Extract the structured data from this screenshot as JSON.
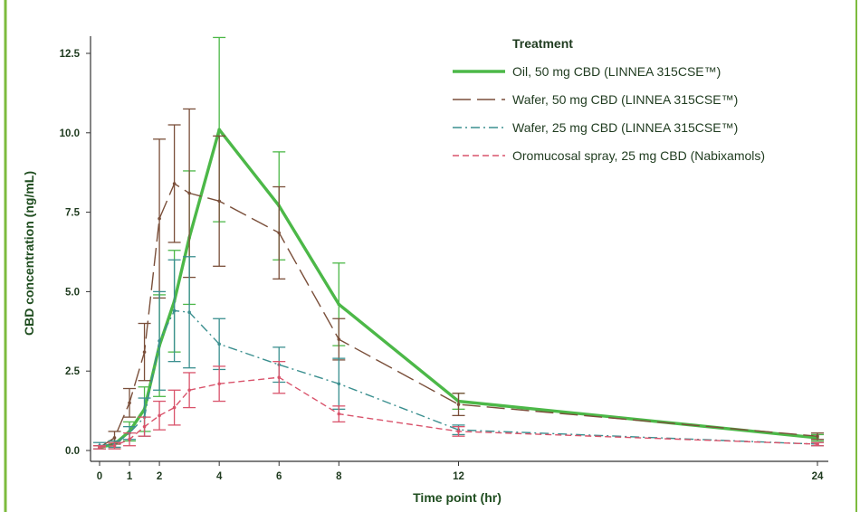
{
  "chart_data": {
    "type": "line",
    "title": "",
    "xlabel": "Time point (hr)",
    "ylabel": "CBD concentration (ng/mL)",
    "xlim": [
      0,
      24
    ],
    "ylim": [
      0,
      12.5
    ],
    "xticks": [
      0,
      1,
      2,
      4,
      6,
      8,
      12,
      24
    ],
    "xtick_labels": [
      "0",
      "1",
      "2",
      "4",
      "6",
      "8",
      "12",
      "24"
    ],
    "yticks": [
      0,
      2.5,
      5,
      7.5,
      10,
      12.5
    ],
    "ytick_labels": [
      "0.0",
      "2.5",
      "5.0",
      "7.5",
      "10.0",
      "12.5"
    ],
    "grid": false,
    "legend_title": "Treatment",
    "legend_position": "top-right",
    "series": [
      {
        "name": "Oil, 50 mg CBD (LINNEA 315CSE™)",
        "color": "#4cb848",
        "dash": "solid",
        "x": [
          0,
          0.5,
          1,
          1.5,
          2,
          2.5,
          3,
          4,
          6,
          8,
          12,
          24
        ],
        "y": [
          0.1,
          0.2,
          0.6,
          1.3,
          3.3,
          4.7,
          6.7,
          10.1,
          7.7,
          4.6,
          1.55,
          0.4
        ],
        "err": [
          0.05,
          0.1,
          0.3,
          0.7,
          1.6,
          1.6,
          2.1,
          2.9,
          1.7,
          1.3,
          0.25,
          0.1
        ]
      },
      {
        "name": "Wafer, 50 mg CBD (LINNEA 315CSE™)",
        "color": "#7a4f3a",
        "dash": "long-dash",
        "x": [
          0,
          0.5,
          1,
          1.5,
          2,
          2.5,
          3,
          4,
          6,
          8,
          12,
          24
        ],
        "y": [
          0.1,
          0.4,
          1.5,
          3.1,
          7.3,
          8.4,
          8.1,
          7.85,
          6.85,
          3.5,
          1.45,
          0.45
        ],
        "err": [
          0.05,
          0.2,
          0.45,
          0.9,
          2.5,
          1.85,
          2.65,
          2.05,
          1.45,
          0.65,
          0.35,
          0.1
        ]
      },
      {
        "name": "Wafer, 25 mg CBD (LINNEA 315CSE™)",
        "color": "#3a8f8f",
        "dash": "dash-dot",
        "x": [
          0,
          0.5,
          1,
          1.5,
          2,
          2.5,
          3,
          4,
          6,
          8,
          12,
          24
        ],
        "y": [
          0.15,
          0.2,
          0.55,
          1.05,
          3.45,
          4.4,
          4.35,
          3.35,
          2.7,
          2.1,
          0.65,
          0.2
        ],
        "err": [
          0.1,
          0.1,
          0.2,
          0.6,
          1.55,
          1.6,
          1.75,
          0.8,
          0.55,
          0.8,
          0.15,
          0.05
        ]
      },
      {
        "name": "Oromucosal spray, 25 mg CBD (Nabixamols)",
        "color": "#d9536b",
        "dash": "short-dash",
        "x": [
          0,
          0.5,
          1,
          1.5,
          2,
          2.5,
          3,
          4,
          6,
          8,
          12,
          24
        ],
        "y": [
          0.1,
          0.15,
          0.35,
          0.75,
          1.1,
          1.35,
          1.9,
          2.1,
          2.3,
          1.15,
          0.6,
          0.2
        ],
        "err": [
          0.05,
          0.1,
          0.2,
          0.3,
          0.45,
          0.55,
          0.55,
          0.55,
          0.5,
          0.25,
          0.15,
          0.05
        ]
      }
    ]
  }
}
